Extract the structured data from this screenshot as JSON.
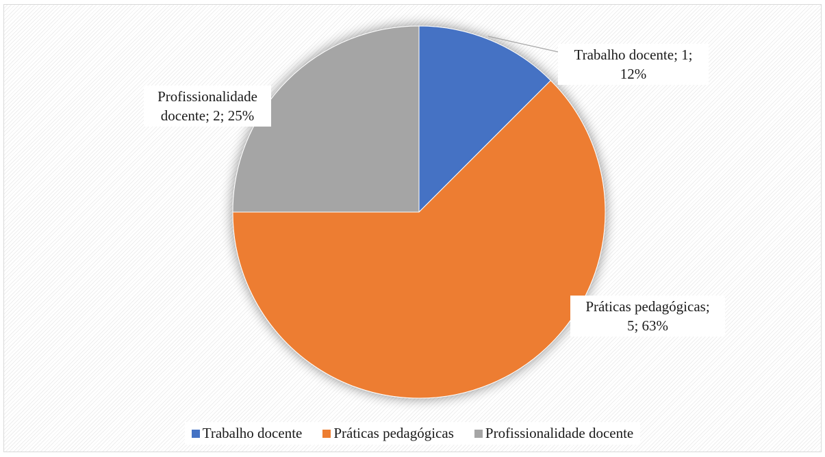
{
  "chart_data": {
    "type": "pie",
    "title": "",
    "start_angle_deg": 0,
    "direction": "clockwise",
    "slices": [
      {
        "label": "Trabalho docente",
        "value": 1,
        "percent": "12%",
        "color": "#4472c4",
        "data_label_line1": "Trabalho docente; 1;",
        "data_label_line2": "12%"
      },
      {
        "label": "Práticas pedagógicas",
        "value": 5,
        "percent": "63%",
        "color": "#ed7d31",
        "data_label_line1": "Práticas pedagógicas;",
        "data_label_line2": "5; 63%"
      },
      {
        "label": "Profissionalidade docente",
        "value": 2,
        "percent": "25%",
        "color": "#a5a5a5",
        "data_label_line1": "Profissionalidade",
        "data_label_line2": "docente; 2; 25%"
      }
    ],
    "legend_position": "bottom"
  }
}
